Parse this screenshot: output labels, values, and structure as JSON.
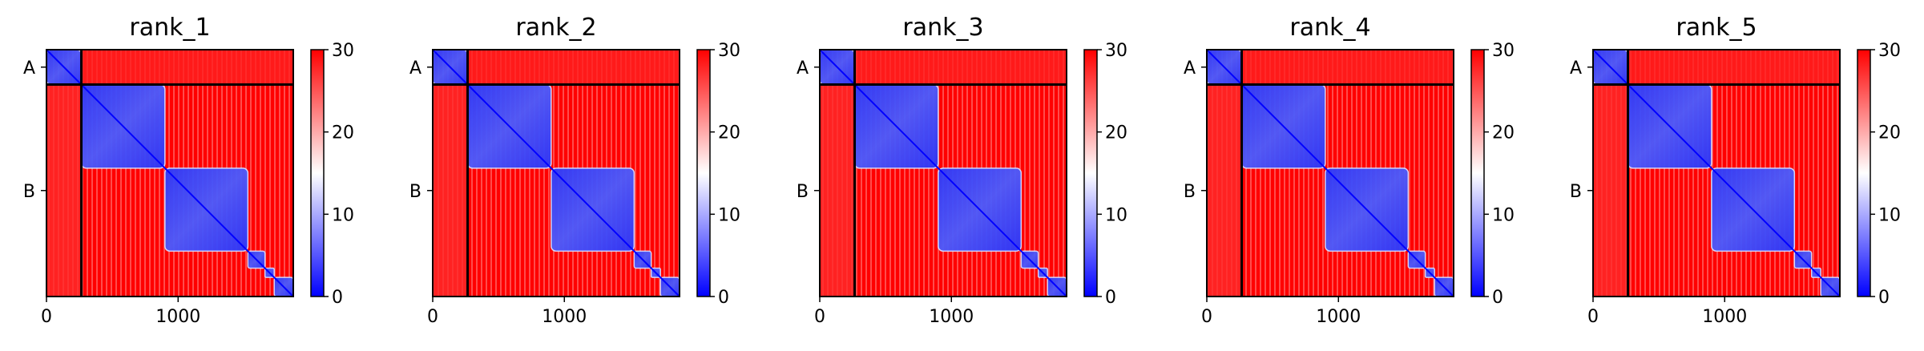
{
  "chart_data": {
    "type": "heatmap",
    "colormap": [
      "#0000ff",
      "#ffffff",
      "#ff0000"
    ],
    "color_range": [
      0,
      30
    ],
    "colorbar_ticks": [
      "0",
      "10",
      "20",
      "30"
    ],
    "x_ticks": [
      {
        "value": 0,
        "label": "0"
      },
      {
        "value": 1000,
        "label": "1000"
      }
    ],
    "axis_range": [
      0,
      1875
    ],
    "chains": [
      {
        "label": "A",
        "start": 0,
        "end": 265
      },
      {
        "label": "B",
        "start": 265,
        "end": 1875
      }
    ],
    "domains": [
      [
        0,
        265
      ],
      [
        265,
        900
      ],
      [
        900,
        1530
      ],
      [
        1530,
        1660
      ],
      [
        1660,
        1730
      ],
      [
        1730,
        1875
      ]
    ],
    "panels": [
      {
        "title": "rank_1"
      },
      {
        "title": "rank_2"
      },
      {
        "title": "rank_3"
      },
      {
        "title": "rank_4"
      },
      {
        "title": "rank_5"
      }
    ]
  }
}
